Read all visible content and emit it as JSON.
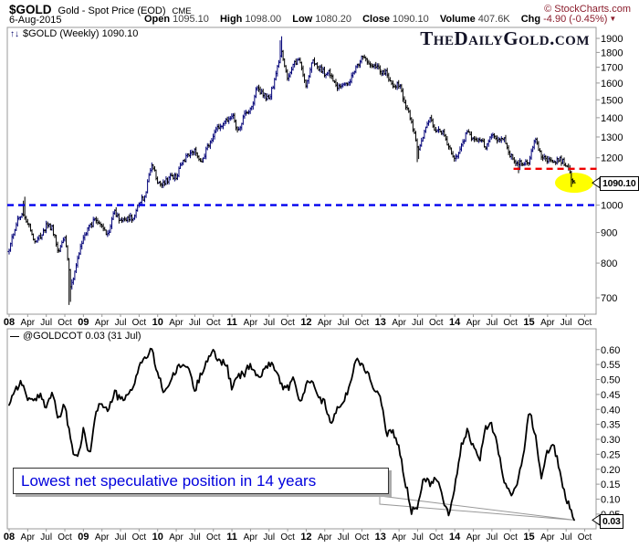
{
  "header": {
    "symbol": "$GOLD",
    "name": "Gold - Spot Price (EOD)",
    "exchange": "CME",
    "copyright": "© StockCharts.com",
    "date": "6-Aug-2015",
    "quote": {
      "open_label": "Open",
      "open": "1095.10",
      "high_label": "High",
      "high": "1098.00",
      "low_label": "Low",
      "low": "1080.20",
      "close_label": "Close",
      "close": "1090.10",
      "volume_label": "Volume",
      "volume": "407.6K",
      "chg_label": "Chg",
      "chg": "-4.90 (-0.45%)",
      "chg_arrow": "▼",
      "chg_direction": "down"
    }
  },
  "top_chart": {
    "legend_icon": "↑↓",
    "legend_label": "$GOLD (Weekly) 1090.10",
    "watermark": "TheDailyGold.com",
    "price_callout": "1090.10"
  },
  "bottom_chart": {
    "legend_icon": "—",
    "legend_label": "@GOLDCOT 0.03 (31 Jul)",
    "value_callout": "0.03",
    "annotation_text": "Lowest net speculative position in 14 years"
  },
  "chart_data": [
    {
      "type": "ohlc-bar",
      "title": "$GOLD Gold Spot Price (EOD) Weekly",
      "x_start": "2008-01",
      "x_end": "2015-10",
      "x_tick_years": [
        "08",
        "09",
        "10",
        "11",
        "12",
        "13",
        "14",
        "15"
      ],
      "x_tick_months": [
        "Apr",
        "Jul",
        "Oct"
      ],
      "y_axis": {
        "scale": "log",
        "ticks": [
          1900,
          1800,
          1700,
          1600,
          1500,
          1400,
          1300,
          1200,
          1100,
          1000,
          900,
          800,
          700
        ],
        "range": [
          660,
          1975
        ]
      },
      "last_price": 1090.1,
      "monthly_anchors": {
        "start": "2008-01",
        "note": "approx price at start of each month, Jan2008..Sep2015",
        "values": [
          845,
          923,
          971,
          933,
          871,
          885,
          926,
          913,
          833,
          884,
          723,
          816,
          882,
          919,
          952,
          916,
          888,
          975,
          934,
          953,
          953,
          1008,
          1040,
          1175,
          1096,
          1083,
          1118,
          1113,
          1179,
          1215,
          1244,
          1169,
          1246,
          1307,
          1357,
          1385,
          1420,
          1327,
          1411,
          1439,
          1564,
          1536,
          1500,
          1628,
          1826,
          1620,
          1722,
          1746,
          1566,
          1737,
          1696,
          1662,
          1664,
          1558,
          1598,
          1615,
          1691,
          1772,
          1720,
          1715,
          1676,
          1661,
          1580,
          1597,
          1469,
          1387,
          1235,
          1312,
          1396,
          1327,
          1324,
          1253,
          1202,
          1244,
          1326,
          1284,
          1292,
          1250,
          1315,
          1285,
          1287,
          1208,
          1173,
          1175,
          1184,
          1283,
          1213,
          1184,
          1184,
          1191,
          1172,
          1095,
          1092
        ]
      },
      "extremes": [
        {
          "m": 2.5,
          "high": 1033
        },
        {
          "m": 9.7,
          "low": 681
        },
        {
          "m": 44.15,
          "high": 1915
        },
        {
          "m": 65.9,
          "low": 1180
        },
        {
          "m": 71.9,
          "low": 1182
        },
        {
          "m": 82.2,
          "low": 1131
        },
        {
          "m": 90.8,
          "low": 1072
        }
      ],
      "overlays": {
        "support_dashed": {
          "color": "#0000ee",
          "value": 1000
        },
        "resistance_dashed": {
          "color": "#ee0000",
          "value": 1150,
          "x_from_month": 81.5
        },
        "highlight_ellipse": {
          "color": "#ffff00",
          "at_price": 1090,
          "at_end": true
        },
        "price_callout": "1090.10"
      },
      "colors": {
        "up": "#000077",
        "down": "#000000",
        "axis": "#999999"
      }
    },
    {
      "type": "line",
      "title": "@GOLDCOT net speculative position",
      "last_value": 0.03,
      "last_date": "31 Jul",
      "y_axis": {
        "scale": "linear",
        "ticks": [
          0.6,
          0.55,
          0.5,
          0.45,
          0.4,
          0.35,
          0.3,
          0.25,
          0.2,
          0.15,
          0.1,
          0.05
        ],
        "range": [
          0.0,
          0.65
        ]
      },
      "monthly_values": {
        "start": "2008-01",
        "note": "approx value at start of each month, Jan2008..Sep2015",
        "values": [
          0.42,
          0.47,
          0.49,
          0.44,
          0.42,
          0.45,
          0.41,
          0.46,
          0.36,
          0.42,
          0.28,
          0.23,
          0.33,
          0.24,
          0.4,
          0.42,
          0.39,
          0.46,
          0.43,
          0.44,
          0.47,
          0.55,
          0.57,
          0.6,
          0.52,
          0.46,
          0.49,
          0.53,
          0.55,
          0.54,
          0.46,
          0.52,
          0.57,
          0.59,
          0.56,
          0.56,
          0.47,
          0.51,
          0.52,
          0.55,
          0.51,
          0.52,
          0.56,
          0.54,
          0.48,
          0.47,
          0.5,
          0.42,
          0.48,
          0.51,
          0.44,
          0.42,
          0.36,
          0.4,
          0.42,
          0.48,
          0.57,
          0.55,
          0.52,
          0.47,
          0.44,
          0.31,
          0.33,
          0.27,
          0.16,
          0.06,
          0.08,
          0.18,
          0.15,
          0.18,
          0.11,
          0.05,
          0.14,
          0.27,
          0.33,
          0.27,
          0.23,
          0.34,
          0.35,
          0.27,
          0.16,
          0.11,
          0.15,
          0.23,
          0.4,
          0.32,
          0.17,
          0.26,
          0.28,
          0.19,
          0.1,
          0.05,
          0.02
        ]
      },
      "annotation": "Lowest net speculative position in 14 years",
      "color": "#000000"
    }
  ]
}
